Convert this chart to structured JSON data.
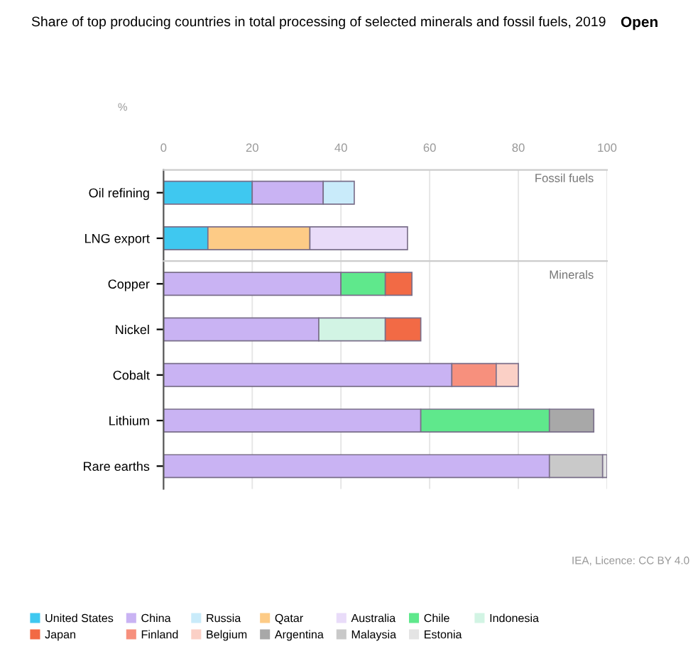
{
  "chart_data": [
    {
      "type": "bar",
      "orientation": "horizontal",
      "stacked": true,
      "title": "Share of top producing countries in total processing of selected minerals and fossil fuels, 2019",
      "xlabel": "%",
      "categories": [
        "Oil refining",
        "LNG export"
      ],
      "series": [
        {
          "name": "United States",
          "color": "#3fc8f0",
          "values": [
            20,
            10
          ]
        },
        {
          "name": "China",
          "color": "#c9b3f3",
          "values": [
            16,
            null
          ]
        },
        {
          "name": "Russia",
          "color": "#c9ebfa",
          "values": [
            7,
            null
          ]
        },
        {
          "name": "Qatar",
          "color": "#fdcb86",
          "values": [
            null,
            23
          ]
        },
        {
          "name": "Australia",
          "color": "#e9dcf9",
          "values": [
            null,
            22
          ]
        }
      ],
      "xlim": [
        0,
        100
      ],
      "xticks": [
        0,
        20,
        40,
        60,
        80,
        100
      ],
      "grid": "x",
      "legend": "bottom",
      "annotations": [
        "Fossil fuels",
        "Open"
      ]
    },
    {
      "type": "bar",
      "orientation": "horizontal",
      "stacked": true,
      "categories": [
        "Copper",
        "Nickel",
        "Cobalt",
        "Lithium",
        "Rare earths"
      ],
      "series": [
        {
          "name": "China",
          "color": "#c9b3f3",
          "values": [
            40,
            35,
            65,
            58,
            87
          ]
        },
        {
          "name": "Chile",
          "color": "#5fe88c",
          "values": [
            10,
            null,
            null,
            29,
            null
          ]
        },
        {
          "name": "Indonesia",
          "color": "#d2f4e4",
          "values": [
            null,
            15,
            null,
            null,
            null
          ]
        },
        {
          "name": "Japan",
          "color": "#f26a45",
          "values": [
            6,
            8,
            null,
            null,
            null
          ]
        },
        {
          "name": "Finland",
          "color": "#f7907d",
          "values": [
            null,
            null,
            10,
            null,
            null
          ]
        },
        {
          "name": "Belgium",
          "color": "#fbd0c6",
          "values": [
            null,
            null,
            5,
            null,
            null
          ]
        },
        {
          "name": "Argentina",
          "color": "#a8a8a8",
          "values": [
            null,
            null,
            null,
            10,
            null
          ]
        },
        {
          "name": "Malaysia",
          "color": "#c9c9c9",
          "values": [
            null,
            null,
            null,
            null,
            12
          ]
        },
        {
          "name": "Estonia",
          "color": "#e4e4e4",
          "values": [
            null,
            null,
            null,
            null,
            1
          ]
        }
      ],
      "xlim": [
        0,
        100
      ],
      "xticks": [
        0,
        20,
        40,
        60,
        80,
        100
      ],
      "tick_labels": "y",
      "grid": "x",
      "legend": "bottom",
      "annotations": [
        "Minerals",
        "IEA, Licence: CC BY 4.0"
      ]
    }
  ]
}
